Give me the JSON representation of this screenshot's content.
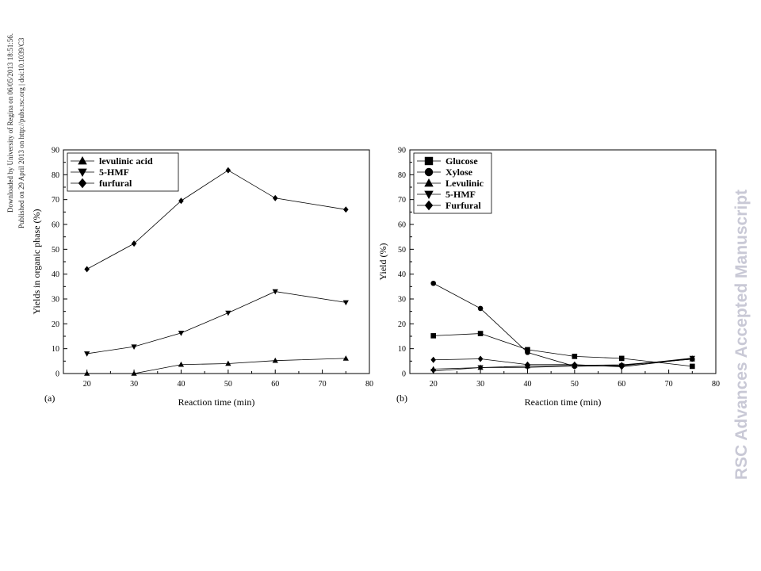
{
  "header": {
    "download_line": "Downloaded by University of Regina on 06/05/2013 18:51:56.",
    "published_line": "Published on 29 April 2013 on http://pubs.rsc.org | doi:10.1039/C3"
  },
  "watermark": "RSC Advances Accepted Manuscript",
  "chart_data": [
    {
      "type": "line",
      "panel_label": "(a)",
      "title": "",
      "xlabel": "Reaction time (min)",
      "ylabel": "Yields in organic phase (%)",
      "xlim": [
        15,
        80
      ],
      "ylim": [
        0,
        90
      ],
      "xticks": [
        20,
        30,
        40,
        50,
        60,
        70,
        80
      ],
      "yticks": [
        0,
        10,
        20,
        30,
        40,
        50,
        60,
        70,
        80,
        90
      ],
      "x": [
        20,
        30,
        40,
        50,
        60,
        75
      ],
      "grid": false,
      "legend_position": "top-left",
      "series": [
        {
          "name": "levulinic acid",
          "marker": "triangle-up",
          "values": [
            0,
            0,
            3.6,
            4.0,
            5.2,
            6.1
          ]
        },
        {
          "name": "5-HMF",
          "marker": "triangle-down",
          "values": [
            8.0,
            10.8,
            16.3,
            24.4,
            33.0,
            28.6
          ]
        },
        {
          "name": "furfural",
          "marker": "diamond",
          "values": [
            42.0,
            52.3,
            69.5,
            81.8,
            70.6,
            66.0
          ]
        }
      ]
    },
    {
      "type": "line",
      "panel_label": "(b)",
      "title": "",
      "xlabel": "Reaction time (min)",
      "ylabel": "Yield (%)",
      "xlim": [
        15,
        80
      ],
      "ylim": [
        0,
        90
      ],
      "xticks": [
        20,
        30,
        40,
        50,
        60,
        70,
        80
      ],
      "yticks": [
        0,
        10,
        20,
        30,
        40,
        50,
        60,
        70,
        80,
        90
      ],
      "x": [
        20,
        30,
        40,
        50,
        60,
        75
      ],
      "grid": false,
      "legend_position": "top-left",
      "series": [
        {
          "name": "Glucose",
          "marker": "square",
          "values": [
            15.2,
            16.1,
            9.6,
            6.9,
            6.1,
            2.9
          ]
        },
        {
          "name": "Xylose",
          "marker": "circle",
          "values": [
            36.3,
            26.2,
            8.5,
            2.9,
            3.3,
            5.8
          ]
        },
        {
          "name": "Levulinic",
          "marker": "triangle-up",
          "values": [
            1.8,
            2.4,
            3.0,
            3.3,
            3.5,
            5.8
          ]
        },
        {
          "name": "5-HMF",
          "marker": "triangle-down",
          "values": [
            1.0,
            2.4,
            2.5,
            3.0,
            3.1,
            6.2
          ]
        },
        {
          "name": "Furfural",
          "marker": "diamond",
          "values": [
            5.5,
            5.9,
            3.6,
            3.6,
            2.7,
            6.0
          ]
        }
      ]
    }
  ]
}
